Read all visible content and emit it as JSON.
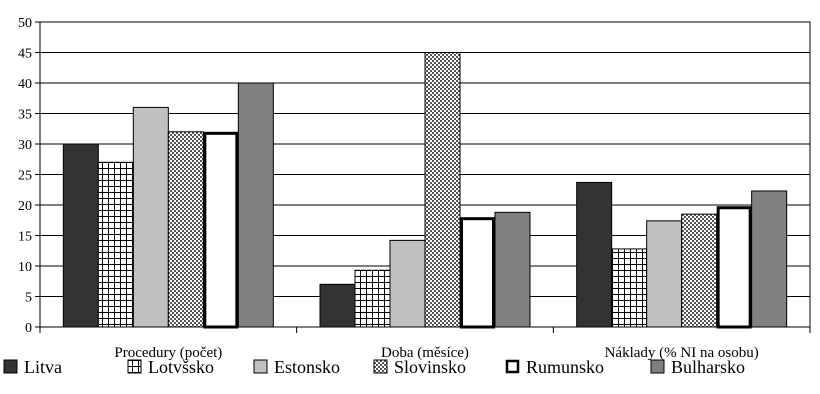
{
  "chart_data": {
    "type": "bar",
    "categories": [
      "Procedury (počet)",
      "Doba (měsíce)",
      "Náklady (% NI na osobu)"
    ],
    "series": [
      {
        "name": "Litva",
        "values": [
          30,
          7,
          23.7
        ],
        "color": "#333333",
        "pattern": "solid"
      },
      {
        "name": "Lotvšsko",
        "values": [
          27,
          9.3,
          12.8
        ],
        "color": "#ffffff",
        "pattern": "grid"
      },
      {
        "name": "Estonsko",
        "values": [
          36,
          14.2,
          17.4
        ],
        "color": "#c0c0c0",
        "pattern": "solid"
      },
      {
        "name": "Slovinsko",
        "values": [
          32,
          45,
          18.5
        ],
        "color": "#e0e0e0",
        "pattern": "dots"
      },
      {
        "name": "Rumunsko",
        "values": [
          32,
          18,
          19.8
        ],
        "color": "#ffffff",
        "pattern": "thick-outline"
      },
      {
        "name": "Bulharsko",
        "values": [
          40,
          18.8,
          22.3
        ],
        "color": "#808080",
        "pattern": "solid"
      }
    ],
    "yticks": [
      0,
      5,
      10,
      15,
      20,
      25,
      30,
      35,
      40,
      45,
      50
    ],
    "ylim": [
      0,
      50
    ],
    "grid": true,
    "legend_position": "bottom"
  }
}
